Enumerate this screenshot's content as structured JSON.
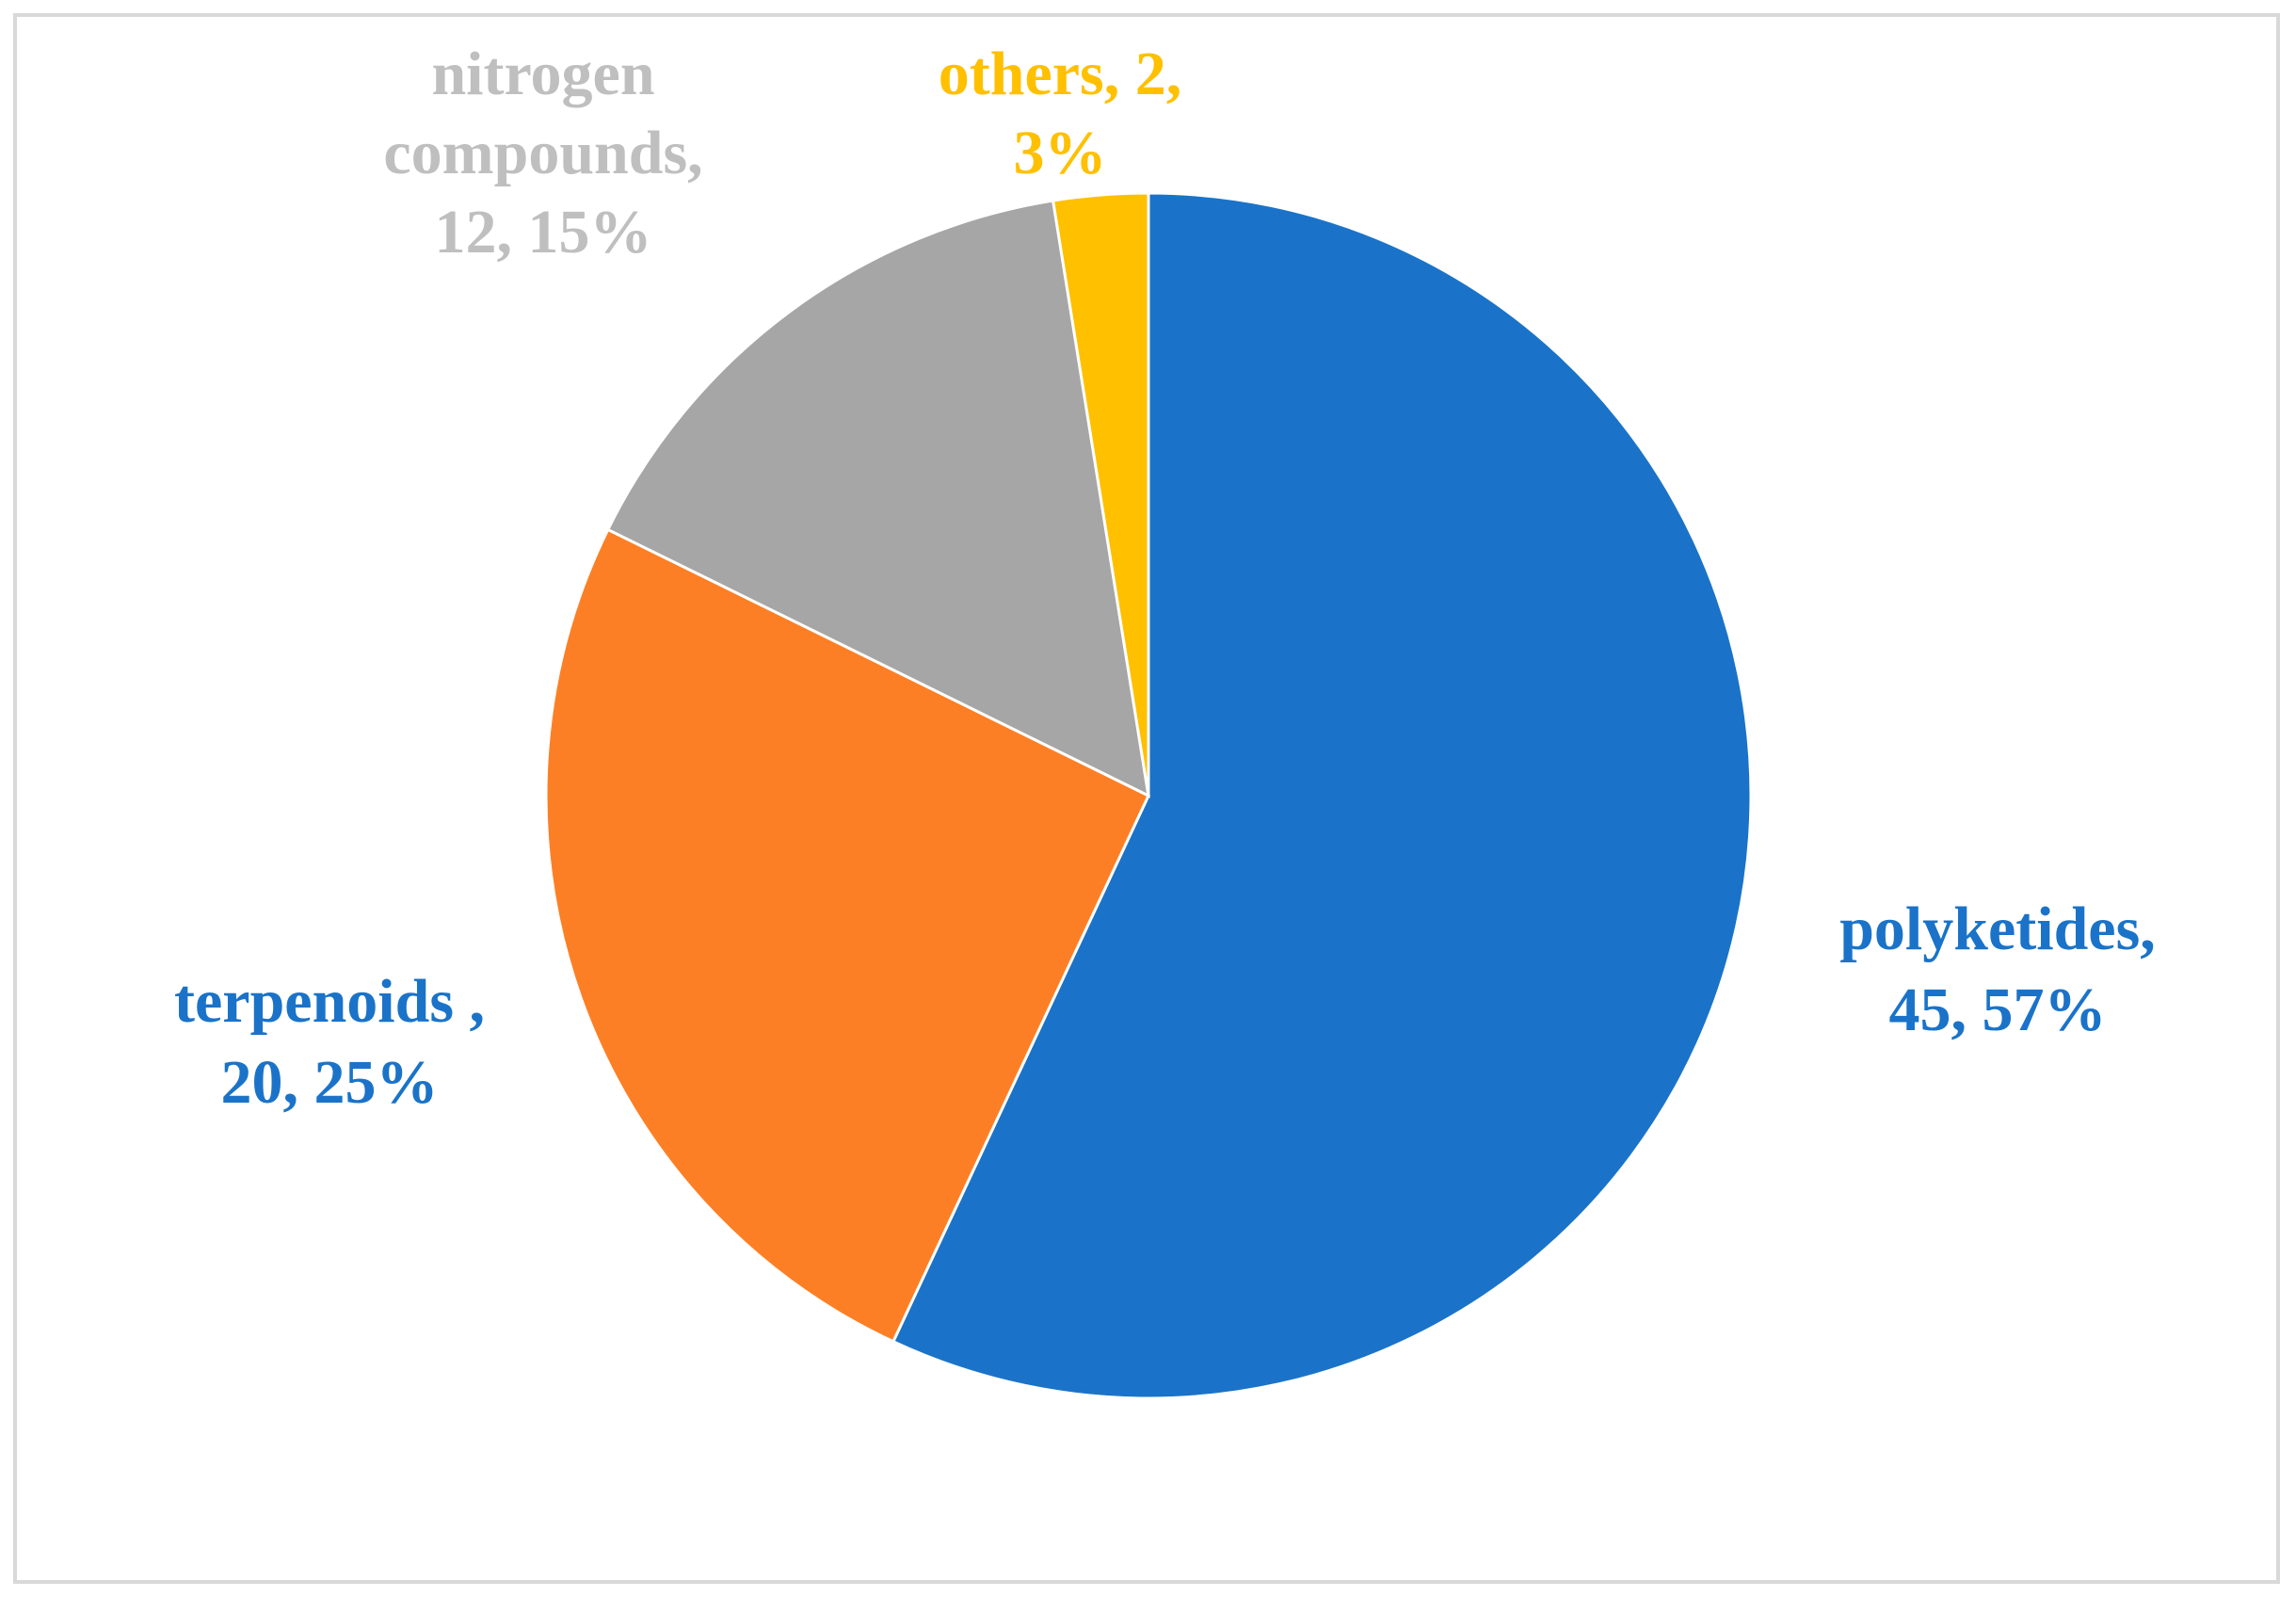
{
  "chart_data": {
    "type": "pie",
    "slices": [
      {
        "category": "polyketides",
        "value": 45,
        "percent": "57%",
        "color": "#1a73c8",
        "label_lines": [
          "polyketides,",
          "45, 57%"
        ]
      },
      {
        "category": "terpenoids",
        "value": 20,
        "percent": "25%",
        "color": "#fd7f25",
        "label_lines": [
          "terpenoids ,",
          "20, 25%"
        ]
      },
      {
        "category": "nitrogen compounds",
        "value": 12,
        "percent": "15%",
        "color": "#a6a6a6",
        "label_lines": [
          "nitrogen",
          "compounds,",
          "12, 15%"
        ]
      },
      {
        "category": "others",
        "value": 2,
        "percent": "3%",
        "color": "#ffc000",
        "label_lines": [
          "others, 2,",
          "3%"
        ]
      }
    ],
    "label_colors": {
      "polyketides": "#1a73c8",
      "terpenoids": "#1a73c8",
      "nitrogen compounds": "#bfbfbf",
      "others": "#ffc000"
    }
  }
}
